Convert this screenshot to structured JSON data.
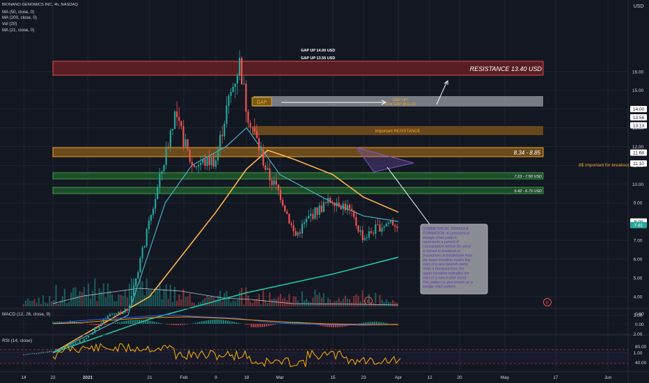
{
  "header": {
    "title": "BIONANO GENOMICS INC, 4h, NASDAQ",
    "indicators": [
      "MA (50, close, 0)",
      "MA (200, close, 0)",
      "Vol (20)",
      "MA (21, close, 0)"
    ]
  },
  "price_axis": {
    "currency": "USD",
    "ticks": [
      "16.00",
      "15.00",
      "14.00",
      "13.00",
      "12.00",
      "11.00",
      "10.00",
      "9.00",
      "8.00",
      "7.00",
      "6.00",
      "5.00",
      "4.00",
      "3.00",
      "2.00",
      "1.00"
    ],
    "tags": [
      {
        "label": "14.00",
        "value": 14.0,
        "color": "#ffffff"
      },
      {
        "label": "13.56",
        "value": 13.56,
        "color": "#ffffff"
      },
      {
        "label": "13.13",
        "value": 13.13,
        "color": "#ffffff"
      },
      {
        "label": "11.68",
        "value": 11.68,
        "color": "#ffffff"
      },
      {
        "label": "11.10",
        "value": 11.1,
        "color": "#ffffff"
      },
      {
        "label": "8.00",
        "value": 8.0,
        "color": "#ffffff"
      },
      {
        "label": "7.81",
        "value": 7.81,
        "color": "#26a69a"
      }
    ]
  },
  "time_axis": [
    "14",
    "22",
    "2021",
    "21",
    "Feb",
    "9",
    "18",
    "Mar",
    "15",
    "23",
    "Apr",
    "12",
    "20",
    "May",
    "17",
    "Jun"
  ],
  "macd": {
    "label": "MACD (12, 26, close, 9)",
    "ticks": [
      "0.60",
      "0.00"
    ]
  },
  "rsi": {
    "label": "RSI (14, close)",
    "ticks": [
      "80.00",
      "40.00"
    ]
  },
  "annotations": {
    "gap_up_1": "GAP UP 14.00 USD",
    "gap_up_2": "GAP UP 13.55 USD",
    "resistance": "RESISTANCE 13.40 USD",
    "gap_label": "GAP",
    "gap_up_box_1": "GAP UP!",
    "gap_up_box_2": "First GAP @11.10",
    "important_resistance": "Important RESISTANCE",
    "zone_834": "8.34 - 8.85",
    "zone_723": "7.23 - 7.50 USD",
    "zone_642": "6.42 - 6.73 USD",
    "breakout_note": "8$ important for breakout",
    "earnings_marker": "E",
    "callout": {
      "title": "SYMMETRICAL TRIANGLE FORMATION:",
      "body": "A symmetrical triangle chart pattern represents a period of consolidation before the price is forced to breakout or breakdown. A breakdown from the lower trendline marks the start of a new bearish trend, while a breakout from the upper trendline indicates the start of a new bullish trend. The pattern is also known as a wedge chart pattern."
    }
  },
  "colors": {
    "background": "#131722",
    "up": "#26a69a",
    "down": "#ef5350",
    "ma50": "#47b1c9",
    "ma200": "#22c8a3",
    "ma21": "#ffb74d",
    "resistance": "#ef5350",
    "orange_zone": "#f5a623",
    "green_zone": "#43a047",
    "gray_zone": "#9e9e9e",
    "triangle": "#7e57c2"
  },
  "chart_data": {
    "type": "candlestick",
    "title": "BIONANO GENOMICS INC, 4h, NASDAQ",
    "y_axis_range": [
      0.5,
      16.8
    ],
    "price_path": [
      [
        "Dec 14",
        0.9
      ],
      [
        "Dec 22",
        1.1
      ],
      [
        "Dec 31",
        1.7
      ],
      [
        "Jan 8",
        3.0
      ],
      [
        "Jan 14",
        3.3
      ],
      [
        "Jan 21",
        8.0
      ],
      [
        "Jan 26",
        11.5
      ],
      [
        "Jan 29",
        13.8
      ],
      [
        "Feb 3",
        11.0
      ],
      [
        "Feb 9",
        11.3
      ],
      [
        "Feb 12",
        13.9
      ],
      [
        "Feb 16",
        16.5
      ],
      [
        "Feb 18",
        14.0
      ],
      [
        "Feb 22",
        12.0
      ],
      [
        "Feb 25",
        10.5
      ],
      [
        "Mar 1",
        9.5
      ],
      [
        "Mar 5",
        7.2
      ],
      [
        "Mar 9",
        8.3
      ],
      [
        "Mar 15",
        9.2
      ],
      [
        "Mar 19",
        8.7
      ],
      [
        "Mar 23",
        7.1
      ],
      [
        "Mar 26",
        7.6
      ],
      [
        "Mar 30",
        8.0
      ],
      [
        "Apr 1",
        7.81
      ]
    ],
    "series": [
      {
        "name": "MA (50, close, 0)",
        "points": [
          [
            "Dec 22",
            1.0
          ],
          [
            "Jan 14",
            3.0
          ],
          [
            "Jan 26",
            9.0
          ],
          [
            "Feb 3",
            11.0
          ],
          [
            "Feb 12",
            12.0
          ],
          [
            "Feb 18",
            13.0
          ],
          [
            "Mar 1",
            10.5
          ],
          [
            "Mar 15",
            9.0
          ],
          [
            "Mar 23",
            8.3
          ],
          [
            "Apr 1",
            8.0
          ]
        ]
      },
      {
        "name": "MA (200, close, 0)",
        "points": [
          [
            "Dec 22",
            1.0
          ],
          [
            "Jan 21",
            2.8
          ],
          [
            "Feb 18",
            4.2
          ],
          [
            "Mar 15",
            5.2
          ],
          [
            "Apr 1",
            6.1
          ]
        ]
      },
      {
        "name": "MA (21, close, 0)",
        "points": [
          [
            "Dec 22",
            1.0
          ],
          [
            "Jan 21",
            4.0
          ],
          [
            "Feb 9",
            8.5
          ],
          [
            "Feb 18",
            10.8
          ],
          [
            "Feb 25",
            11.8
          ],
          [
            "Mar 5",
            11.3
          ],
          [
            "Mar 15",
            10.5
          ],
          [
            "Mar 23",
            9.3
          ],
          [
            "Apr 1",
            8.5
          ]
        ]
      }
    ],
    "zones": [
      {
        "label": "RESISTANCE 13.40 USD",
        "low": 13.2,
        "high": 13.65
      },
      {
        "label": "GAP UP!",
        "low": 11.1,
        "high": 11.68
      },
      {
        "label": "Important RESISTANCE",
        "low": 9.8,
        "high": 10.15
      },
      {
        "label": "8.34 - 8.85",
        "low": 8.34,
        "high": 8.85
      },
      {
        "label": "7.23 - 7.50 USD",
        "low": 7.23,
        "high": 7.5
      },
      {
        "label": "6.42 - 6.73 USD",
        "low": 6.42,
        "high": 6.73
      }
    ],
    "last_price": 7.81,
    "legend": "top-left",
    "grid": true
  }
}
